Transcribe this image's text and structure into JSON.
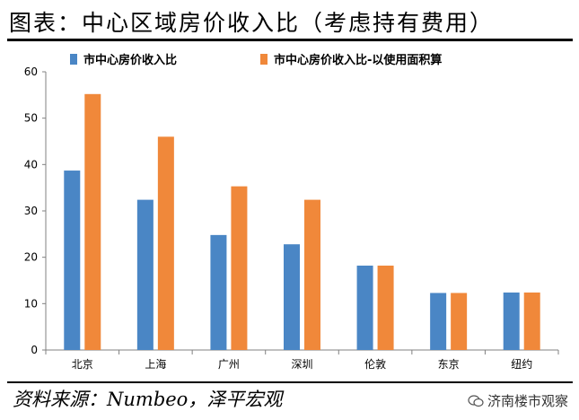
{
  "header": {
    "title": "图表：中心区域房价收入比（考虑持有费用）"
  },
  "footer": {
    "source": "资料来源：Numbeo，泽平宏观",
    "watermark": "济南楼市观察"
  },
  "colors": {
    "series1": "#4a86c5",
    "series2": "#f0883a",
    "axis": "#808080"
  },
  "chart_data": {
    "type": "bar",
    "categories": [
      "北京",
      "上海",
      "广州",
      "深圳",
      "伦敦",
      "东京",
      "纽约"
    ],
    "series": [
      {
        "name": "市中心房价收入比",
        "values": [
          38.7,
          32.4,
          24.8,
          22.8,
          18.2,
          12.3,
          12.4
        ]
      },
      {
        "name": "市中心房价收入比-以使用面积算",
        "values": [
          55.2,
          46.0,
          35.3,
          32.4,
          18.2,
          12.3,
          12.4
        ]
      }
    ],
    "yticks": [
      0,
      10,
      20,
      30,
      40,
      50,
      60
    ],
    "ylim": [
      0,
      60
    ],
    "grid": false,
    "legend": "top"
  }
}
